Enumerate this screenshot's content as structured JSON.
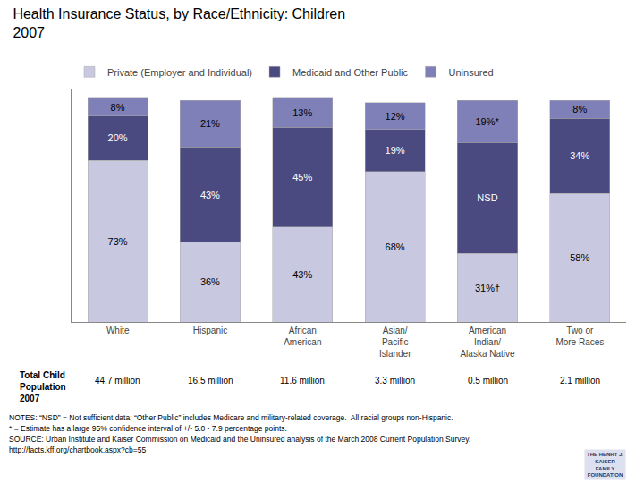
{
  "chart_data": {
    "type": "bar",
    "title": "Health Insurance Status, by Race/Ethnicity: Children",
    "subtitle": "2007",
    "categories": [
      "White",
      "Hispanic",
      "African\nAmerican",
      "Asian/\nPacific\nIslander",
      "American\nIndian/\nAlaska Native",
      "Two or\nMore Races"
    ],
    "series": [
      {
        "name": "Private (Employer and Individual)",
        "color": "#c8c8e0",
        "values": [
          73,
          36,
          43,
          68,
          31,
          58
        ],
        "value_labels": [
          "73%",
          "36%",
          "43%",
          "68%",
          "31%†",
          "58%"
        ]
      },
      {
        "name": "Medicaid and Other Public",
        "color": "#4a4a80",
        "values": [
          20,
          43,
          45,
          19,
          50,
          34
        ],
        "value_labels": [
          "20%",
          "43%",
          "45%",
          "19%",
          "NSD",
          "34%"
        ]
      },
      {
        "name": "Uninsured",
        "color": "#8080b8",
        "values": [
          8,
          21,
          13,
          12,
          19,
          8
        ],
        "value_labels": [
          "8%",
          "21%",
          "13%",
          "12%",
          "19%*",
          "8%"
        ]
      }
    ],
    "stacked": true,
    "data_labels": true,
    "ylim": [
      0,
      105
    ],
    "yticks": [],
    "tick_labels": "x",
    "grid": false,
    "legend": "upper left",
    "populations_label": "Total Child\nPopulation\n2007",
    "populations": [
      "44.7 million",
      "16.5 million",
      "11.6 million",
      "3.3 million",
      "0.5 million",
      "2.1 million"
    ],
    "notes": [
      "NOTES: “NSD” = Not sufficient data; “Other Public” includes Medicare and military-related coverage.  All racial groups non-Hispanic.",
      "* = Estimate has a large 95% confidence interval of +/- 5.0 - 7.9 percentage points.",
      "SOURCE: Urban Institute and Kaiser Commission on Medicaid and the Uninsured analysis of the March 2008 Current Population Survey.",
      "http://facts.kff.org/chartbook.aspx?cb=55"
    ],
    "logo": [
      "THE HENRY J.",
      "KAISER",
      "FAMILY",
      "FOUNDATION"
    ]
  }
}
